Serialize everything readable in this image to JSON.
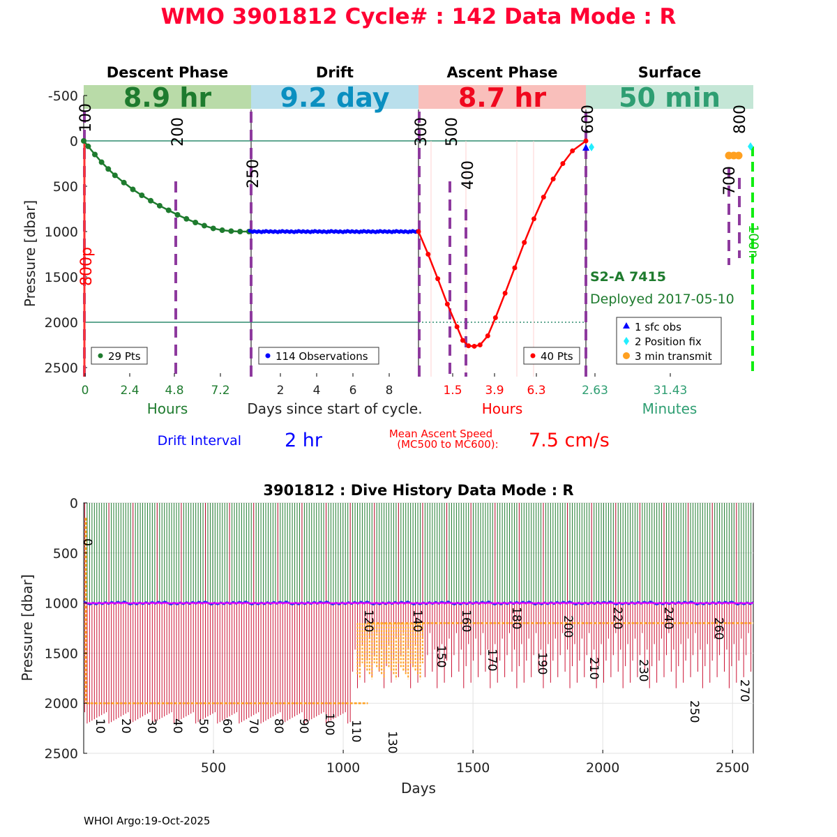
{
  "header": {
    "title": "WMO 3901812   Cycle# : 142   Data Mode : R",
    "title_color": "#ff0033"
  },
  "float_info": {
    "model": "S2-A 7415",
    "deployed": "Deployed 2017-05-10",
    "color": "#1e7b2e"
  },
  "drift_interval": {
    "label": "Drift Interval",
    "value": "2 hr"
  },
  "ascent_speed": {
    "label_line1": "Mean Ascent Speed",
    "label_line2": "(MC500 to MC600):",
    "value": "7.5 cm/s"
  },
  "footer": {
    "credit": "WHOI Argo:19-Oct-2025"
  },
  "chart_data": [
    {
      "type": "line",
      "ylabel": "Pressure [dbar]",
      "ylim": [
        2600,
        -500
      ],
      "yticks": [
        -500,
        0,
        500,
        1000,
        1500,
        2000,
        2500
      ],
      "x_caption": "Days since start of cycle.",
      "phases": [
        {
          "name": "Descent Phase",
          "duration": "8.9 hr",
          "band_color": "#b9dba8",
          "text_color": "#1e7b2e",
          "axis_unit": "Hours",
          "ticks": [
            "0",
            "2.4",
            "4.8",
            "7.2"
          ],
          "legend": "29 Pts",
          "series_color": "#1e7b2e"
        },
        {
          "name": "Drift",
          "duration": "9.2 day",
          "band_color": "#b9dfec",
          "text_color": "#0a8fc0",
          "axis_unit": "",
          "ticks": [
            "2",
            "4",
            "6",
            "8"
          ],
          "legend": "114 Observations",
          "series_color": "#0000ff"
        },
        {
          "name": "Ascent Phase",
          "duration": "8.7 hr",
          "band_color": "#f9bfbb",
          "text_color": "#f0081e",
          "axis_unit": "Hours",
          "ticks": [
            "1.5",
            "3.9",
            "6.3"
          ],
          "legend": "40 Pts",
          "series_color": "#ff0000"
        },
        {
          "name": "Surface",
          "duration": "50 min",
          "band_color": "#c4e6d6",
          "text_color": "#2e9e72",
          "axis_unit": "Minutes",
          "ticks": [
            "2.63",
            "31.43"
          ],
          "legend_items": [
            "1 sfc obs",
            "2 Position fix",
            "3 min transmit"
          ],
          "series_color": "#2e9e72"
        }
      ],
      "mission_codes": [
        "100",
        "200",
        "250",
        "300",
        "500",
        "400",
        "600",
        "700",
        "800"
      ],
      "side_labels": {
        "left": "800p",
        "right": "100n"
      },
      "descent": {
        "x_hours": [
          0,
          0.2,
          0.5,
          0.8,
          1.1,
          1.4,
          1.8,
          2.2,
          2.6,
          3.0,
          3.4,
          3.8,
          4.2,
          4.6,
          5.0,
          5.4,
          5.8,
          6.2,
          6.6,
          7.0,
          7.4
        ],
        "pressure": [
          0,
          60,
          150,
          235,
          310,
          380,
          460,
          535,
          600,
          660,
          715,
          765,
          815,
          860,
          900,
          935,
          965,
          985,
          995,
          1000,
          1000
        ]
      },
      "drift": {
        "pressure_mean": 1000,
        "pressure_range": [
          990,
          1012
        ]
      },
      "ascent": {
        "x_hours": [
          0,
          0.5,
          1.0,
          1.5,
          2.0,
          2.3,
          2.6,
          2.9,
          3.2,
          3.6,
          4.0,
          4.5,
          5.0,
          5.5,
          6.0,
          6.5,
          7.0,
          7.5,
          8.0,
          8.7
        ],
        "pressure": [
          1000,
          1250,
          1520,
          1800,
          2050,
          2200,
          2260,
          2265,
          2250,
          2150,
          1950,
          1680,
          1400,
          1120,
          860,
          620,
          420,
          250,
          110,
          0
        ]
      },
      "surface_points": {
        "sfc_obs": [
          0
        ],
        "position_fix": [
          0,
          0
        ],
        "transmit": [
          50,
          50,
          50
        ]
      }
    },
    {
      "type": "bar",
      "title": "3901812 : Dive History      Data Mode : R",
      "xlabel": "Days",
      "ylabel": "Pressure [dbar]",
      "xlim": [
        0,
        2580
      ],
      "ylim": [
        2500,
        0
      ],
      "xticks": [
        500,
        1000,
        1500,
        2000,
        2500
      ],
      "yticks": [
        0,
        500,
        1000,
        1500,
        2000,
        2500
      ],
      "drift_pressure": 1000,
      "cycle_labels": [
        "0",
        "10",
        "20",
        "30",
        "40",
        "50",
        "60",
        "70",
        "80",
        "90",
        "100",
        "110",
        "120",
        "130",
        "140",
        "150",
        "160",
        "170",
        "180",
        "190",
        "200",
        "210",
        "220",
        "230",
        "240",
        "250",
        "260",
        "270"
      ],
      "profile_depths": {
        "early_cycles": 2000,
        "later_cycles": 1200
      }
    }
  ]
}
